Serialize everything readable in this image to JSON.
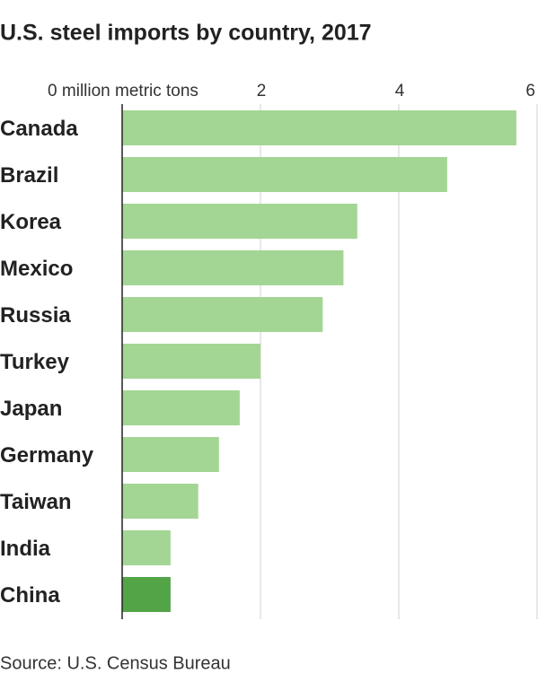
{
  "chart_data": {
    "type": "hbar",
    "title": "U.S. steel imports by country, 2017",
    "source": "Source: U.S. Census Bureau",
    "categories": [
      "Canada",
      "Brazil",
      "Korea",
      "Mexico",
      "Russia",
      "Turkey",
      "Japan",
      "Germany",
      "Taiwan",
      "India",
      "China"
    ],
    "values": [
      5.7,
      4.7,
      3.4,
      3.2,
      2.9,
      2.0,
      1.7,
      1.4,
      1.1,
      0.7,
      0.7
    ],
    "colors": [
      "#a3d694",
      "#a3d694",
      "#a3d694",
      "#a3d694",
      "#a3d694",
      "#a3d694",
      "#a3d694",
      "#a3d694",
      "#a3d694",
      "#a3d694",
      "#52a447"
    ],
    "xlim": [
      0,
      6
    ],
    "xticks": [
      {
        "value": 0,
        "label": "0 million metric tons"
      },
      2,
      4,
      6
    ],
    "grid": true
  }
}
